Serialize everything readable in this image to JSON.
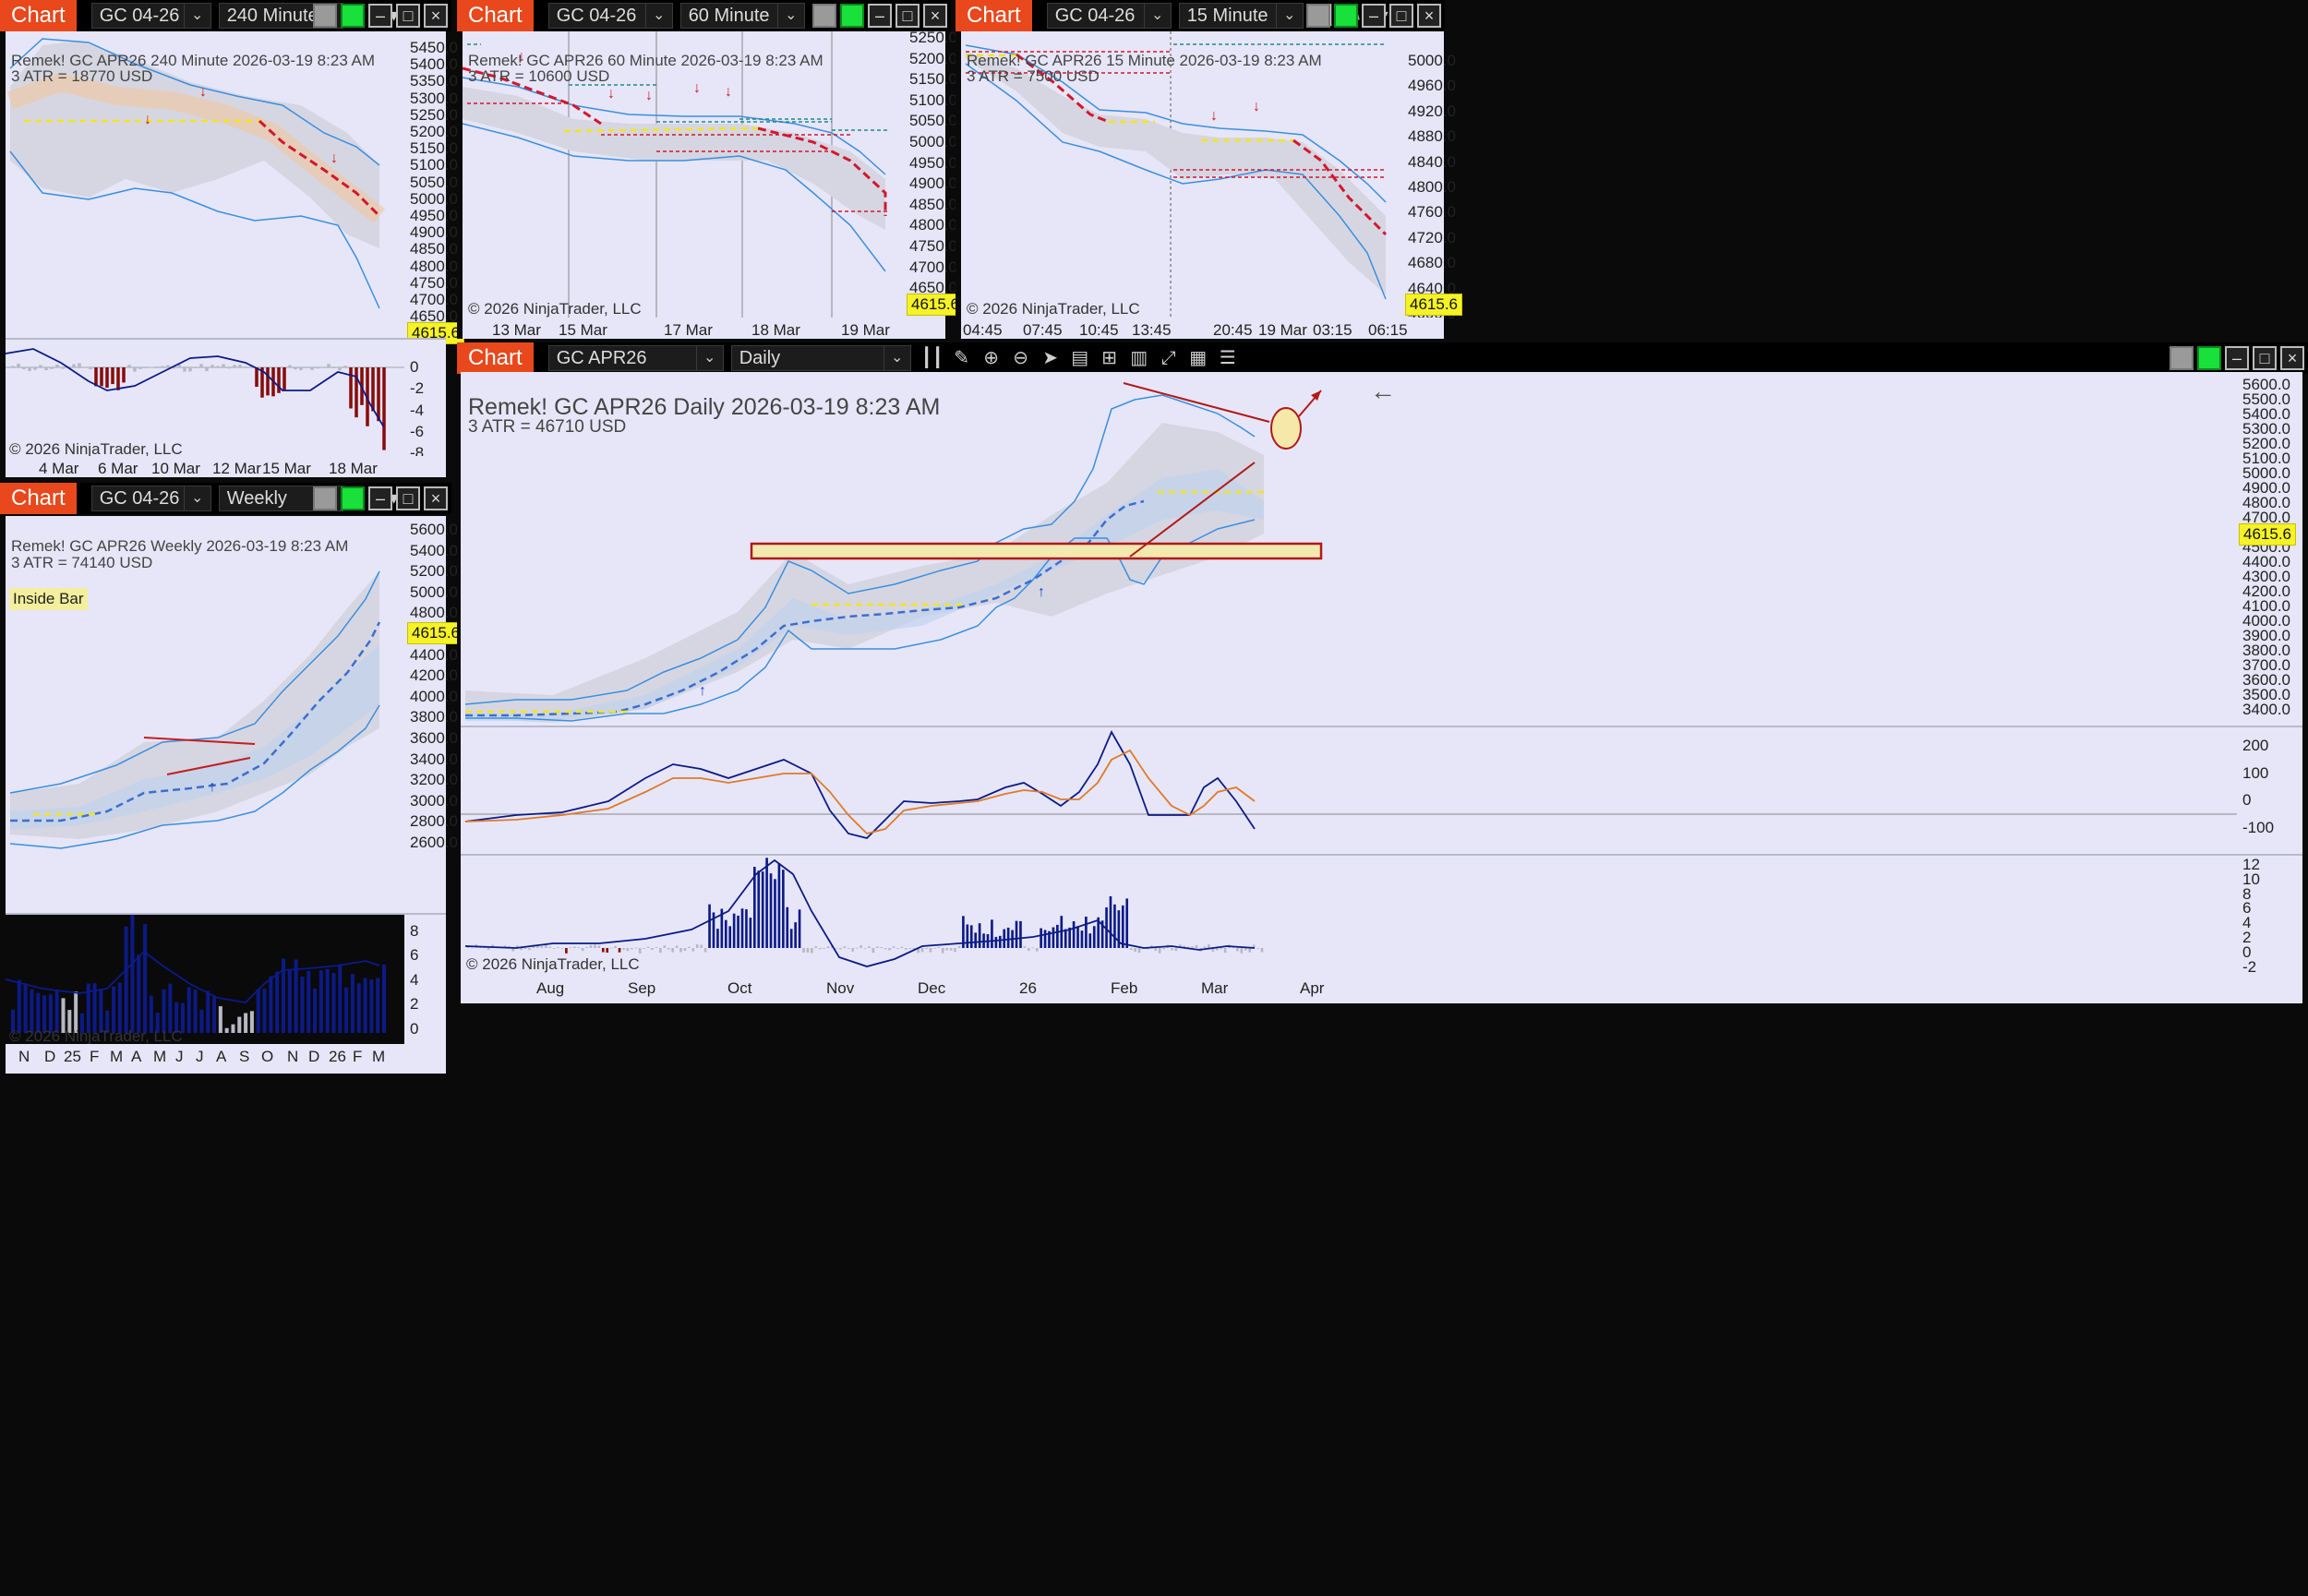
{
  "colors": {
    "titlebar": "#000000",
    "chart_tab": "#e8481c",
    "plot_bg": "#e6e6f8",
    "bull": "#1f7a2c",
    "bear": "#7a0c0c",
    "band": "#3a8fe0",
    "trail": "#d3172c",
    "mid": "#f4e51c",
    "price_badge": "#f5f227",
    "hist_bull": "#0c1a88",
    "hist_bear": "#880c0c"
  },
  "panels": [
    {
      "id": "p240",
      "tab": "Chart",
      "instrument": "GC 04-26",
      "interval": "240 Minute",
      "info_line1": "Remek!  GC APR26  240 Minute  2026-03-19 8:23 AM",
      "info_line2": "3 ATR = 18770 USD",
      "price": "4615.6",
      "copyright": "© 2026 NinjaTrader, LLC",
      "y_labels": [
        "5450.0",
        "5400.0",
        "5350.0",
        "5300.0",
        "5250.0",
        "5200.0",
        "5150.0",
        "5100.0",
        "5050.0",
        "5000.0",
        "4950.0",
        "4900.0",
        "4850.0",
        "4800.0",
        "4750.0",
        "4700.0",
        "4650.0"
      ],
      "osc_labels": [
        "0",
        "-2",
        "-4",
        "-6",
        "-8"
      ],
      "x_labels": [
        "4 Mar",
        "6 Mar",
        "10 Mar",
        "12 Mar",
        "15 Mar",
        "18 Mar"
      ]
    },
    {
      "id": "p60",
      "tab": "Chart",
      "instrument": "GC 04-26",
      "interval": "60 Minute",
      "info_line1": "Remek!  GC APR26  60 Minute  2026-03-19 8:23 AM",
      "info_line2": "3 ATR = 10600 USD",
      "price": "4615.6",
      "copyright": "© 2026 NinjaTrader, LLC",
      "y_labels": [
        "5250.0",
        "5200.0",
        "5150.0",
        "5100.0",
        "5050.0",
        "5000.0",
        "4950.0",
        "4900.0",
        "4850.0",
        "4800.0",
        "4750.0",
        "4700.0",
        "4650.0",
        "4600.0"
      ],
      "x_labels": [
        "13 Mar",
        "15 Mar",
        "17 Mar",
        "18 Mar",
        "19 Mar"
      ]
    },
    {
      "id": "p15",
      "tab": "Chart",
      "instrument": "GC 04-26",
      "interval": "15 Minute",
      "info_line1": "Remek!  GC APR26  15 Minute  2026-03-19 8:23 AM",
      "info_line2": "3 ATR = 7500 USD",
      "price": "4615.6",
      "copyright": "© 2026 NinjaTrader, LLC",
      "y_labels": [
        "5000.0",
        "4960.0",
        "4920.0",
        "4880.0",
        "4840.0",
        "4800.0",
        "4760.0",
        "4720.0",
        "4680.0",
        "4640.0",
        "4600.0"
      ],
      "x_labels": [
        "04:45",
        "07:45",
        "10:45",
        "13:45",
        "20:45",
        "19 Mar",
        "03:15",
        "06:15"
      ]
    },
    {
      "id": "pW",
      "tab": "Chart",
      "instrument": "GC 04-26",
      "interval": "Weekly",
      "info_line1": "Remek!  GC APR26  Weekly  2026-03-19 8:23 AM",
      "info_line2": "3 ATR = 74140 USD",
      "inside_bar": "Inside Bar",
      "price": "4615.6",
      "copyright": "© 2026 NinjaTrader, LLC",
      "y_labels": [
        "5600.0",
        "5400.0",
        "5200.0",
        "5000.0",
        "4800.0",
        "4600.0",
        "4400.0",
        "4200.0",
        "4000.0",
        "3800.0",
        "3600.0",
        "3400.0",
        "3200.0",
        "3000.0",
        "2800.0",
        "2600.0"
      ],
      "vol_labels": [
        "8",
        "6",
        "4",
        "2",
        "0"
      ],
      "x_labels": [
        "N",
        "D",
        "25",
        "F",
        "M",
        "A",
        "M",
        "J",
        "J",
        "A",
        "S",
        "O",
        "N",
        "D",
        "26",
        "F",
        "M"
      ]
    },
    {
      "id": "pD",
      "tab": "Chart",
      "instrument": "GC APR26",
      "interval": "Daily",
      "info_line1": "Remek!  GC APR26  Daily  2026-03-19 8:23 AM",
      "info_line2": "3 ATR = 46710 USD",
      "price": "4615.6",
      "copyright": "© 2026 NinjaTrader, LLC",
      "y_labels": [
        "5600.0",
        "5500.0",
        "5400.0",
        "5300.0",
        "5200.0",
        "5100.0",
        "5000.0",
        "4900.0",
        "4800.0",
        "4700.0",
        "4600.0",
        "4500.0",
        "4400.0",
        "4300.0",
        "4200.0",
        "4100.0",
        "4000.0",
        "3900.0",
        "3800.0",
        "3700.0",
        "3600.0",
        "3500.0",
        "3400.0"
      ],
      "osc_labels": [
        "200",
        "100",
        "0",
        "-100"
      ],
      "vol_labels": [
        "12",
        "10",
        "8",
        "6",
        "4",
        "2",
        "0",
        "-2"
      ],
      "x_labels": [
        "Aug",
        "Sep",
        "Oct",
        "Nov",
        "Dec",
        "26",
        "Feb",
        "Mar",
        "Apr"
      ],
      "back_arrow": "←"
    }
  ],
  "chart_data": [
    {
      "type": "candlestick",
      "panel": "240 Minute",
      "title": "GC APR26 240 Minute",
      "x": [
        "4 Mar",
        "6 Mar",
        "10 Mar",
        "12 Mar",
        "15 Mar",
        "18 Mar",
        "19 Mar"
      ],
      "close": [
        5300,
        5110,
        5180,
        5190,
        5020,
        4990,
        4615.6
      ],
      "ylim": [
        4630,
        5480
      ],
      "last": 4615.6
    },
    {
      "type": "candlestick",
      "panel": "60 Minute",
      "title": "GC APR26 60 Minute",
      "x": [
        "13 Mar",
        "15 Mar",
        "17 Mar",
        "18 Mar",
        "19 Mar"
      ],
      "close": [
        5120,
        5000,
        5020,
        4960,
        4615.6
      ],
      "ylim": [
        4590,
        5260
      ],
      "last": 4615.6
    },
    {
      "type": "candlestick",
      "panel": "15 Minute",
      "title": "GC APR26 15 Minute",
      "x": [
        "04:45",
        "07:45",
        "10:45",
        "13:45",
        "20:45",
        "19 Mar",
        "03:15",
        "06:15"
      ],
      "close": [
        5010,
        4870,
        4890,
        4810,
        4870,
        4840,
        4700,
        4615.6
      ],
      "ylim": [
        4590,
        5020
      ],
      "last": 4615.6
    },
    {
      "type": "candlestick",
      "panel": "Weekly",
      "title": "GC APR26 Weekly",
      "x": [
        "N",
        "D",
        "25",
        "F",
        "M",
        "A",
        "M",
        "J",
        "J",
        "A",
        "S",
        "O",
        "N",
        "D",
        "26",
        "F",
        "M"
      ],
      "close": [
        2950,
        2930,
        2860,
        2980,
        3070,
        3350,
        3300,
        3390,
        3420,
        3560,
        3780,
        4250,
        4140,
        4500,
        4700,
        5090,
        4615.6
      ],
      "ylim": [
        2560,
        5650
      ],
      "last": 4615.6
    },
    {
      "type": "candlestick",
      "panel": "Daily",
      "title": "GC APR26 Daily",
      "x": [
        "Aug",
        "Sep",
        "Oct",
        "Nov",
        "Dec",
        "26",
        "Feb",
        "Mar",
        "Apr"
      ],
      "close": [
        3420,
        3540,
        3900,
        4060,
        4220,
        4400,
        4950,
        5200,
        4615.6
      ],
      "ylim": [
        3350,
        5650
      ],
      "last": 4615.6,
      "zone": [
        4440,
        4530
      ]
    }
  ]
}
